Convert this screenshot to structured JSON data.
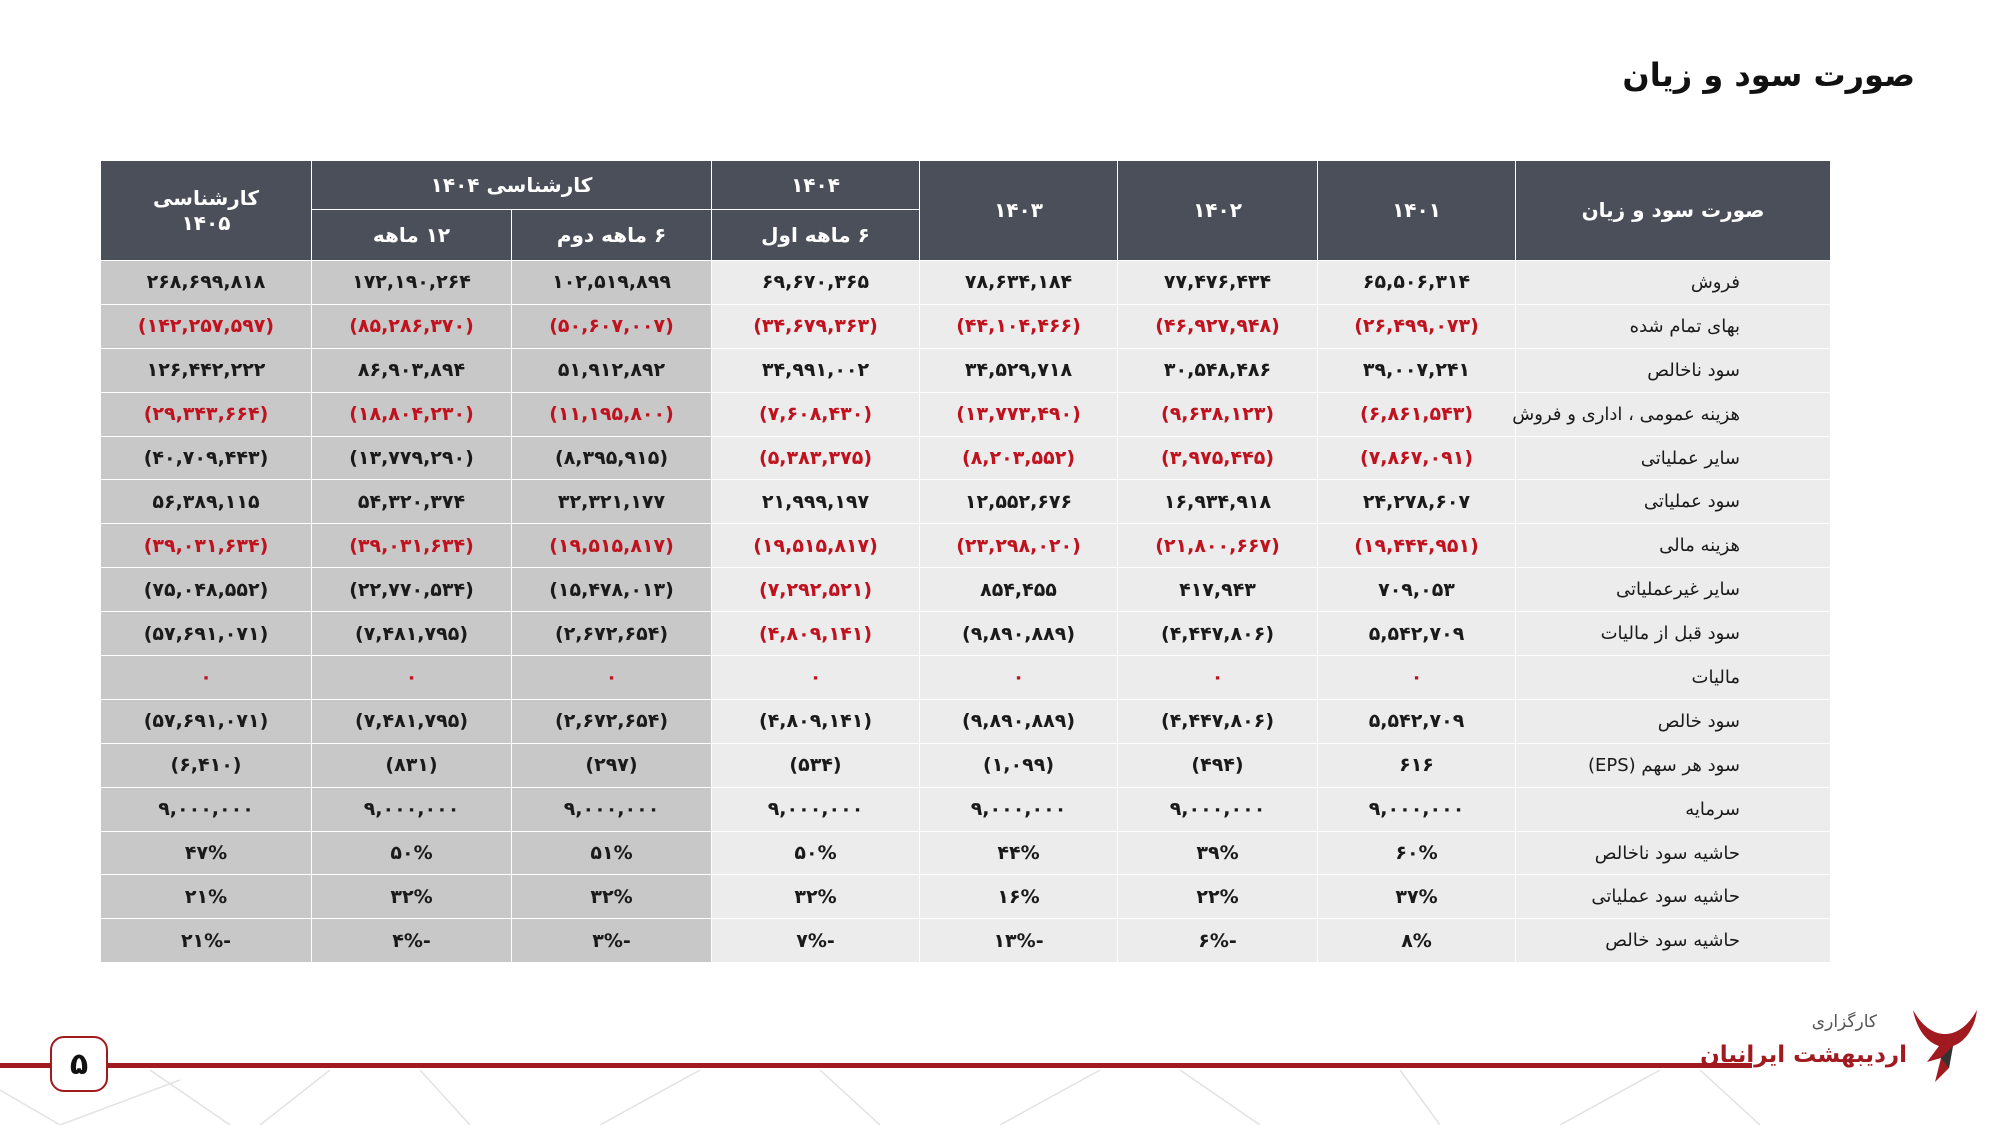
{
  "title": "صورت سود و زیان",
  "table": {
    "header": {
      "label_col": "صورت سود و زیان",
      "y1401": "۱۴۰۱",
      "y1402": "۱۴۰۲",
      "y1403": "۱۴۰۳",
      "y1404_top": "۱۴۰۴",
      "y1404_sub": "۶ ماهه اول",
      "forecast_1404": "کارشناسی ۱۴۰۴",
      "second_half": "۶ ماهه دوم",
      "twelve_month": "۱۲ ماهه",
      "forecast_1405_l1": "کارشناسی",
      "forecast_1405_l2": "۱۴۰۵"
    },
    "rows": [
      {
        "label": "فروش",
        "values": [
          "۶۵,۵۰۶,۳۱۴",
          "۷۷,۴۷۶,۴۳۴",
          "۷۸,۶۳۴,۱۸۴",
          "۶۹,۶۷۰,۳۶۵",
          "۱۰۲,۵۱۹,۸۹۹",
          "۱۷۲,۱۹۰,۲۶۴",
          "۲۶۸,۶۹۹,۸۱۸"
        ],
        "neg": [
          0,
          0,
          0,
          0,
          0,
          0,
          0
        ]
      },
      {
        "label": "بهای تمام شده",
        "values": [
          "(۲۶,۴۹۹,۰۷۳)",
          "(۴۶,۹۲۷,۹۴۸)",
          "(۴۴,۱۰۴,۴۶۶)",
          "(۳۴,۶۷۹,۳۶۳)",
          "(۵۰,۶۰۷,۰۰۷)",
          "(۸۵,۲۸۶,۳۷۰)",
          "(۱۴۲,۲۵۷,۵۹۷)"
        ],
        "neg": [
          1,
          1,
          1,
          1,
          1,
          1,
          1
        ]
      },
      {
        "label": "سود ناخالص",
        "values": [
          "۳۹,۰۰۷,۲۴۱",
          "۳۰,۵۴۸,۴۸۶",
          "۳۴,۵۲۹,۷۱۸",
          "۳۴,۹۹۱,۰۰۲",
          "۵۱,۹۱۲,۸۹۲",
          "۸۶,۹۰۳,۸۹۴",
          "۱۲۶,۴۴۲,۲۲۲"
        ],
        "neg": [
          0,
          0,
          0,
          0,
          0,
          0,
          0
        ]
      },
      {
        "label": "هزینه عمومی ، اداری و فروش",
        "values": [
          "(۶,۸۶۱,۵۴۳)",
          "(۹,۶۳۸,۱۲۳)",
          "(۱۳,۷۷۳,۴۹۰)",
          "(۷,۶۰۸,۴۳۰)",
          "(۱۱,۱۹۵,۸۰۰)",
          "(۱۸,۸۰۴,۲۳۰)",
          "(۲۹,۳۴۳,۶۶۴)"
        ],
        "neg": [
          1,
          1,
          1,
          1,
          1,
          1,
          1
        ]
      },
      {
        "label": "سایر عملیاتی",
        "values": [
          "(۷,۸۶۷,۰۹۱)",
          "(۳,۹۷۵,۴۴۵)",
          "(۸,۲۰۳,۵۵۲)",
          "(۵,۳۸۳,۳۷۵)",
          "(۸,۳۹۵,۹۱۵)",
          "(۱۳,۷۷۹,۲۹۰)",
          "(۴۰,۷۰۹,۴۴۳)"
        ],
        "neg": [
          1,
          1,
          1,
          1,
          0,
          0,
          0
        ]
      },
      {
        "label": "سود عملیاتی",
        "values": [
          "۲۴,۲۷۸,۶۰۷",
          "۱۶,۹۳۴,۹۱۸",
          "۱۲,۵۵۲,۶۷۶",
          "۲۱,۹۹۹,۱۹۷",
          "۳۲,۳۲۱,۱۷۷",
          "۵۴,۳۲۰,۳۷۴",
          "۵۶,۳۸۹,۱۱۵"
        ],
        "neg": [
          0,
          0,
          0,
          0,
          0,
          0,
          0
        ]
      },
      {
        "label": "هزینه مالی",
        "values": [
          "(۱۹,۴۴۴,۹۵۱)",
          "(۲۱,۸۰۰,۶۶۷)",
          "(۲۳,۲۹۸,۰۲۰)",
          "(۱۹,۵۱۵,۸۱۷)",
          "(۱۹,۵۱۵,۸۱۷)",
          "(۳۹,۰۳۱,۶۳۴)",
          "(۳۹,۰۳۱,۶۳۴)"
        ],
        "neg": [
          1,
          1,
          1,
          1,
          1,
          1,
          1
        ]
      },
      {
        "label": "سایر غیرعملیاتی",
        "values": [
          "۷۰۹,۰۵۳",
          "۴۱۷,۹۴۳",
          "۸۵۴,۴۵۵",
          "(۷,۲۹۲,۵۲۱)",
          "(۱۵,۴۷۸,۰۱۳)",
          "(۲۲,۷۷۰,۵۳۴)",
          "(۷۵,۰۴۸,۵۵۲)"
        ],
        "neg": [
          0,
          0,
          0,
          1,
          0,
          0,
          0
        ]
      },
      {
        "label": "سود قبل از مالیات",
        "values": [
          "۵,۵۴۲,۷۰۹",
          "(۴,۴۴۷,۸۰۶)",
          "(۹,۸۹۰,۸۸۹)",
          "(۴,۸۰۹,۱۴۱)",
          "(۲,۶۷۲,۶۵۴)",
          "(۷,۴۸۱,۷۹۵)",
          "(۵۷,۶۹۱,۰۷۱)"
        ],
        "neg": [
          0,
          0,
          0,
          1,
          0,
          0,
          0
        ]
      },
      {
        "label": "مالیات",
        "values": [
          "۰",
          "۰",
          "۰",
          "۰",
          "۰",
          "۰",
          "۰"
        ],
        "neg": [
          1,
          1,
          1,
          1,
          1,
          1,
          1
        ]
      },
      {
        "label": "سود خالص",
        "values": [
          "۵,۵۴۲,۷۰۹",
          "(۴,۴۴۷,۸۰۶)",
          "(۹,۸۹۰,۸۸۹)",
          "(۴,۸۰۹,۱۴۱)",
          "(۲,۶۷۲,۶۵۴)",
          "(۷,۴۸۱,۷۹۵)",
          "(۵۷,۶۹۱,۰۷۱)"
        ],
        "neg": [
          0,
          0,
          0,
          0,
          0,
          0,
          0
        ]
      },
      {
        "label": "سود هر سهم (EPS)",
        "values": [
          "۶۱۶",
          "(۴۹۴)",
          "(۱,۰۹۹)",
          "(۵۳۴)",
          "(۲۹۷)",
          "(۸۳۱)",
          "(۶,۴۱۰)"
        ],
        "neg": [
          0,
          0,
          0,
          0,
          0,
          0,
          0
        ]
      },
      {
        "label": "سرمایه",
        "values": [
          "۹,۰۰۰,۰۰۰",
          "۹,۰۰۰,۰۰۰",
          "۹,۰۰۰,۰۰۰",
          "۹,۰۰۰,۰۰۰",
          "۹,۰۰۰,۰۰۰",
          "۹,۰۰۰,۰۰۰",
          "۹,۰۰۰,۰۰۰"
        ],
        "neg": [
          0,
          0,
          0,
          0,
          0,
          0,
          0
        ]
      },
      {
        "label": "حاشیه سود ناخالص",
        "values": [
          "۶۰%",
          "۳۹%",
          "۴۴%",
          "۵۰%",
          "۵۱%",
          "۵۰%",
          "۴۷%"
        ],
        "neg": [
          0,
          0,
          0,
          0,
          0,
          0,
          0
        ]
      },
      {
        "label": "حاشیه سود عملیاتی",
        "values": [
          "۳۷%",
          "۲۲%",
          "۱۶%",
          "۳۲%",
          "۳۲%",
          "۳۲%",
          "۲۱%"
        ],
        "neg": [
          0,
          0,
          0,
          0,
          0,
          0,
          0
        ]
      },
      {
        "label": "حاشیه سود خالص",
        "values": [
          "۸%",
          "-۶%",
          "-۱۳%",
          "-۷%",
          "-۳%",
          "-۴%",
          "-۲۱%"
        ],
        "neg": [
          0,
          0,
          0,
          0,
          0,
          0,
          0
        ]
      }
    ]
  },
  "footer": {
    "page_number": "۵",
    "logo_line1": "کارگزاری",
    "logo_line2": "اردیبهشت ایرانیان",
    "brand_color": "#a01a1f"
  }
}
